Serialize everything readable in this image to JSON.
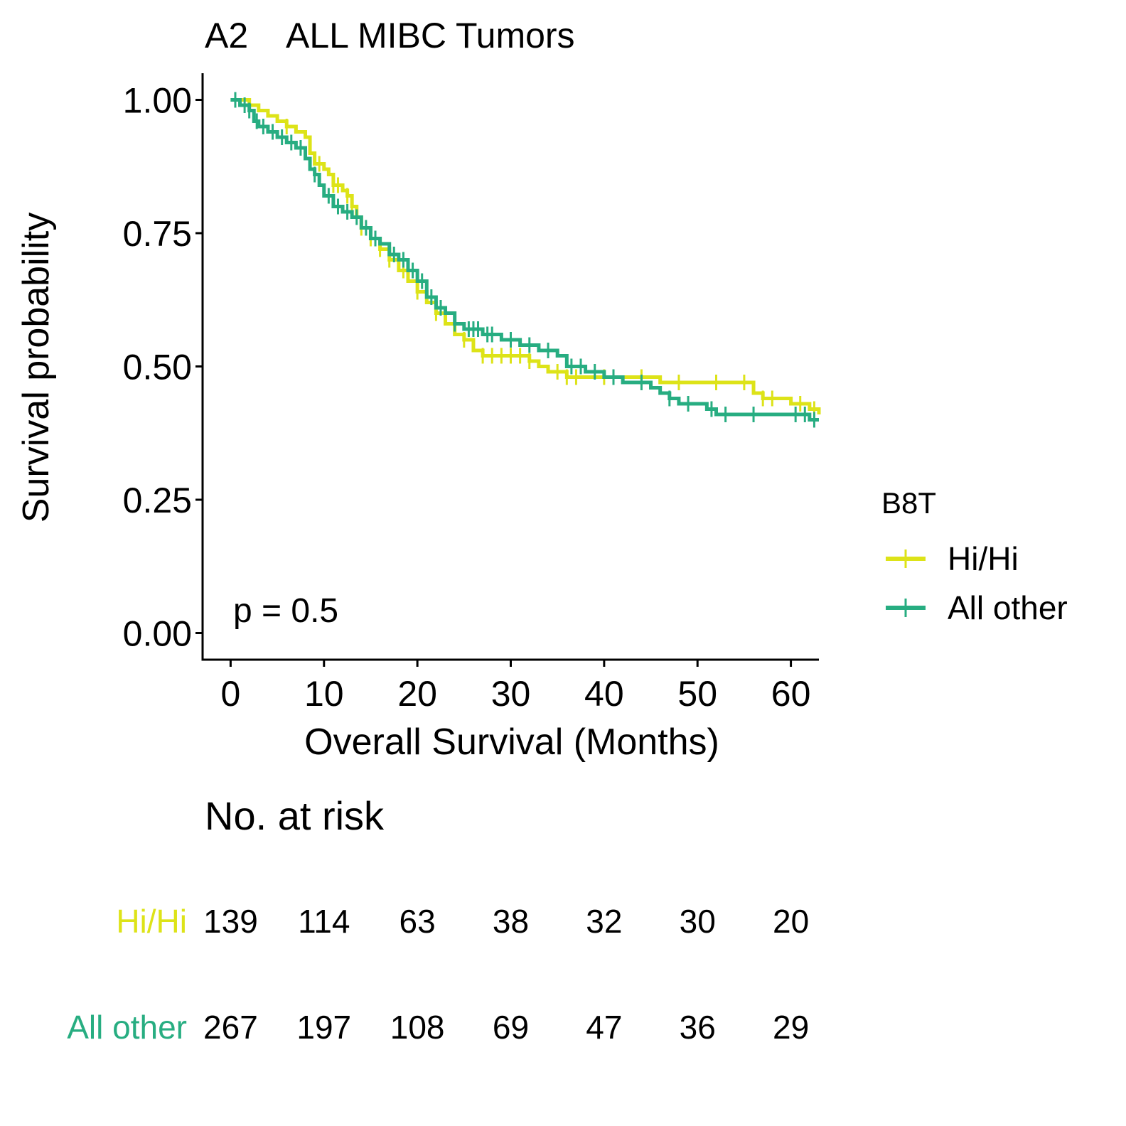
{
  "chart_data": {
    "type": "line",
    "title": "A2    ALL MIBC Tumors",
    "xlabel": "Overall Survival (Months)",
    "ylabel": "Survival probability",
    "xlim": [
      -3,
      63
    ],
    "ylim": [
      -0.05,
      1.05
    ],
    "x_ticks": [
      0,
      10,
      20,
      30,
      40,
      50,
      60
    ],
    "x_tick_labels": [
      "0",
      "10",
      "20",
      "30",
      "40",
      "50",
      "60"
    ],
    "y_ticks": [
      0,
      0.25,
      0.5,
      0.75,
      1
    ],
    "y_tick_labels": [
      "0.00",
      "0.25",
      "0.50",
      "0.75",
      "1.00"
    ],
    "grid": false,
    "annotation": "p = 0.5",
    "legend": {
      "title": "B8T",
      "position": "right"
    },
    "series": [
      {
        "name": "Hi/Hi",
        "color": "#DDE318",
        "steps": [
          [
            0,
            1
          ],
          [
            2,
            0.99
          ],
          [
            3,
            0.98
          ],
          [
            4,
            0.97
          ],
          [
            5,
            0.96
          ],
          [
            6,
            0.95
          ],
          [
            7,
            0.94
          ],
          [
            8,
            0.93
          ],
          [
            8.5,
            0.9
          ],
          [
            9,
            0.88
          ],
          [
            10,
            0.87
          ],
          [
            10.5,
            0.86
          ],
          [
            11,
            0.84
          ],
          [
            12,
            0.83
          ],
          [
            12.5,
            0.82
          ],
          [
            13,
            0.8
          ],
          [
            13.5,
            0.78
          ],
          [
            14,
            0.76
          ],
          [
            15,
            0.74
          ],
          [
            16,
            0.72
          ],
          [
            17,
            0.7
          ],
          [
            18,
            0.68
          ],
          [
            19,
            0.66
          ],
          [
            20,
            0.64
          ],
          [
            21,
            0.62
          ],
          [
            22,
            0.6
          ],
          [
            23,
            0.58
          ],
          [
            24,
            0.56
          ],
          [
            25,
            0.55
          ],
          [
            26,
            0.53
          ],
          [
            27,
            0.52
          ],
          [
            30,
            0.52
          ],
          [
            32,
            0.51
          ],
          [
            33,
            0.5
          ],
          [
            34,
            0.49
          ],
          [
            36,
            0.48
          ],
          [
            45,
            0.48
          ],
          [
            46,
            0.47
          ],
          [
            55,
            0.47
          ],
          [
            56,
            0.45
          ],
          [
            57,
            0.44
          ],
          [
            60,
            0.43
          ],
          [
            62,
            0.42
          ],
          [
            63,
            0.41
          ]
        ],
        "censor_times": [
          6,
          9.5,
          11,
          11.5,
          12.5,
          13,
          14,
          15,
          16,
          17,
          18.5,
          20,
          22,
          25,
          27,
          28,
          29,
          30,
          31,
          32,
          35,
          36,
          37,
          40,
          44,
          48,
          52,
          55,
          57,
          58,
          61,
          62.5
        ],
        "at_risk": [
          139,
          114,
          63,
          38,
          32,
          30,
          20
        ]
      },
      {
        "name": "All other",
        "color": "#27AD81",
        "steps": [
          [
            0,
            1
          ],
          [
            1,
            0.99
          ],
          [
            2,
            0.98
          ],
          [
            2.5,
            0.96
          ],
          [
            3,
            0.95
          ],
          [
            4,
            0.94
          ],
          [
            5,
            0.93
          ],
          [
            6,
            0.92
          ],
          [
            7,
            0.91
          ],
          [
            8,
            0.89
          ],
          [
            8.5,
            0.87
          ],
          [
            9,
            0.86
          ],
          [
            9.5,
            0.84
          ],
          [
            10,
            0.82
          ],
          [
            11,
            0.8
          ],
          [
            12,
            0.79
          ],
          [
            13,
            0.78
          ],
          [
            14,
            0.76
          ],
          [
            15,
            0.74
          ],
          [
            16,
            0.73
          ],
          [
            17,
            0.71
          ],
          [
            18,
            0.7
          ],
          [
            19,
            0.68
          ],
          [
            20,
            0.66
          ],
          [
            21,
            0.63
          ],
          [
            22,
            0.61
          ],
          [
            23,
            0.6
          ],
          [
            24,
            0.58
          ],
          [
            25,
            0.57
          ],
          [
            27,
            0.56
          ],
          [
            29,
            0.55
          ],
          [
            31,
            0.54
          ],
          [
            33,
            0.53
          ],
          [
            35,
            0.52
          ],
          [
            36,
            0.5
          ],
          [
            38,
            0.49
          ],
          [
            40,
            0.48
          ],
          [
            42,
            0.47
          ],
          [
            45,
            0.46
          ],
          [
            46,
            0.45
          ],
          [
            47,
            0.44
          ],
          [
            48,
            0.43
          ],
          [
            51,
            0.42
          ],
          [
            52,
            0.41
          ],
          [
            61,
            0.41
          ],
          [
            62,
            0.4
          ]
        ],
        "censor_times": [
          0.5,
          1.5,
          2,
          2.8,
          3.5,
          4.5,
          5.5,
          6.5,
          7.5,
          9,
          10.5,
          11.5,
          12.5,
          13.5,
          14.5,
          15.5,
          17.5,
          18.5,
          19.5,
          20.5,
          21.5,
          22.5,
          24,
          25.5,
          26,
          26.5,
          27.5,
          28,
          30,
          32,
          34,
          36.5,
          37.5,
          39,
          41,
          44,
          47,
          49,
          51.5,
          53,
          56,
          60.5,
          61.5,
          62.5
        ]
      }
    ],
    "risk_table": {
      "title": "No. at risk",
      "times": [
        0,
        10,
        20,
        30,
        40,
        50,
        60
      ],
      "rows": [
        {
          "label": "Hi/Hi",
          "color": "#DDE318",
          "values": [
            139,
            114,
            63,
            38,
            32,
            30,
            20
          ]
        },
        {
          "label": "All other",
          "color": "#27AD81",
          "values": [
            267,
            197,
            108,
            69,
            47,
            36,
            29
          ]
        }
      ]
    }
  }
}
